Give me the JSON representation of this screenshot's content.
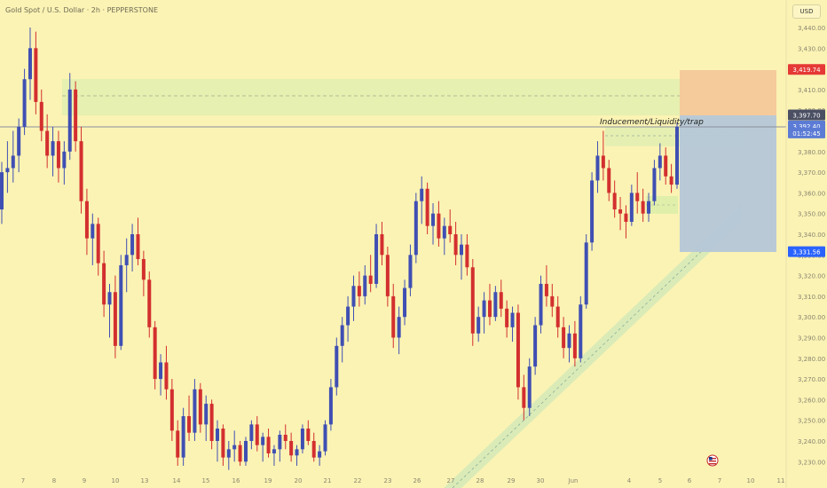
{
  "header": {
    "symbol_title": "Gold Spot / U.S. Dollar · 2h · PEPPERSTONE",
    "currency_button": "USD"
  },
  "chart_data": {
    "type": "candlestick",
    "instrument": "Gold Spot / U.S. Dollar",
    "timeframe": "2h",
    "broker": "PEPPERSTONE",
    "ylim": [
      3225,
      3445
    ],
    "y_ticks": [
      "3,440.00",
      "3,430.00",
      "3,420.00",
      "3,410.00",
      "3,400.00",
      "3,390.00",
      "3,380.00",
      "3,370.00",
      "3,360.00",
      "3,350.00",
      "3,340.00",
      "3,330.00",
      "3,320.00",
      "3,310.00",
      "3,300.00",
      "3,290.00",
      "3,280.00",
      "3,270.00",
      "3,260.00",
      "3,250.00",
      "3,240.00",
      "3,230.00"
    ],
    "x_ticks": [
      "7",
      "8",
      "9",
      "10",
      "13",
      "14",
      "15",
      "16",
      "19",
      "20",
      "21",
      "22",
      "23",
      "26",
      "27",
      "28",
      "29",
      "30",
      "Jun",
      "4",
      "5",
      "6",
      "7",
      "10",
      "11"
    ],
    "price_labels": [
      {
        "text": "3,419.74",
        "value": 3419.74,
        "color": "#e53935",
        "role": "target"
      },
      {
        "text": "3,397.70",
        "value": 3397.7,
        "color": "#4a4f63",
        "role": "line"
      },
      {
        "text": "3,392.40",
        "value": 3392.4,
        "color": "#5b7bd5",
        "role": "last price"
      },
      {
        "text": "01:52:45",
        "value": 3389.0,
        "color": "#5b7bd5",
        "role": "countdown"
      },
      {
        "text": "3,331.56",
        "value": 3331.56,
        "color": "#2962ff",
        "role": "stop"
      }
    ],
    "annotation": "Inducement/Liquidity/trap",
    "colors": {
      "up": "#3f4fb3",
      "down": "#d32f2f",
      "background": "#fbf3b4"
    },
    "grid": false,
    "candles": [
      [
        1,
        3352,
        3375,
        3345,
        3370
      ],
      [
        2,
        3370,
        3385,
        3360,
        3372
      ],
      [
        3,
        3372,
        3390,
        3365,
        3378
      ],
      [
        4,
        3378,
        3396,
        3370,
        3392
      ],
      [
        5,
        3392,
        3420,
        3388,
        3415
      ],
      [
        6,
        3415,
        3440,
        3405,
        3430
      ],
      [
        7,
        3430,
        3438,
        3398,
        3404
      ],
      [
        8,
        3404,
        3410,
        3385,
        3390
      ],
      [
        9,
        3390,
        3398,
        3372,
        3378
      ],
      [
        10,
        3378,
        3392,
        3368,
        3385
      ],
      [
        11,
        3385,
        3390,
        3365,
        3372
      ],
      [
        12,
        3372,
        3385,
        3364,
        3380
      ],
      [
        13,
        3380,
        3418,
        3376,
        3410
      ],
      [
        14,
        3410,
        3414,
        3380,
        3385
      ],
      [
        15,
        3385,
        3392,
        3350,
        3356
      ],
      [
        16,
        3356,
        3362,
        3330,
        3338
      ],
      [
        17,
        3338,
        3350,
        3325,
        3345
      ],
      [
        18,
        3345,
        3348,
        3320,
        3326
      ],
      [
        19,
        3326,
        3332,
        3300,
        3306
      ],
      [
        20,
        3306,
        3316,
        3290,
        3312
      ],
      [
        21,
        3312,
        3320,
        3280,
        3286
      ],
      [
        22,
        3286,
        3330,
        3284,
        3325
      ],
      [
        23,
        3325,
        3338,
        3312,
        3330
      ],
      [
        24,
        3330,
        3345,
        3322,
        3340
      ],
      [
        25,
        3340,
        3348,
        3325,
        3328
      ],
      [
        26,
        3328,
        3332,
        3310,
        3318
      ],
      [
        27,
        3318,
        3322,
        3290,
        3295
      ],
      [
        28,
        3295,
        3298,
        3265,
        3270
      ],
      [
        29,
        3270,
        3282,
        3262,
        3278
      ],
      [
        30,
        3278,
        3286,
        3260,
        3265
      ],
      [
        31,
        3265,
        3270,
        3240,
        3245
      ],
      [
        32,
        3245,
        3250,
        3228,
        3232
      ],
      [
        33,
        3232,
        3256,
        3228,
        3252
      ],
      [
        34,
        3252,
        3262,
        3240,
        3244
      ],
      [
        35,
        3244,
        3270,
        3240,
        3265
      ],
      [
        36,
        3265,
        3268,
        3244,
        3248
      ],
      [
        37,
        3248,
        3262,
        3240,
        3258
      ],
      [
        38,
        3258,
        3260,
        3236,
        3240
      ],
      [
        39,
        3240,
        3250,
        3230,
        3246
      ],
      [
        40,
        3246,
        3248,
        3228,
        3232
      ],
      [
        41,
        3232,
        3240,
        3226,
        3236
      ],
      [
        42,
        3236,
        3245,
        3230,
        3238
      ],
      [
        43,
        3238,
        3240,
        3228,
        3230
      ],
      [
        44,
        3230,
        3242,
        3228,
        3240
      ],
      [
        45,
        3240,
        3250,
        3236,
        3248
      ],
      [
        46,
        3248,
        3252,
        3235,
        3238
      ],
      [
        47,
        3238,
        3244,
        3230,
        3242
      ],
      [
        48,
        3242,
        3246,
        3232,
        3234
      ],
      [
        49,
        3234,
        3238,
        3228,
        3236
      ],
      [
        50,
        3236,
        3245,
        3230,
        3243
      ],
      [
        51,
        3243,
        3248,
        3236,
        3240
      ],
      [
        52,
        3240,
        3244,
        3230,
        3233
      ],
      [
        53,
        3233,
        3238,
        3228,
        3236
      ],
      [
        54,
        3236,
        3248,
        3234,
        3246
      ],
      [
        55,
        3246,
        3250,
        3238,
        3240
      ],
      [
        56,
        3240,
        3244,
        3230,
        3232
      ],
      [
        57,
        3232,
        3238,
        3228,
        3235
      ],
      [
        58,
        3235,
        3250,
        3233,
        3248
      ],
      [
        59,
        3248,
        3270,
        3245,
        3266
      ],
      [
        60,
        3266,
        3290,
        3262,
        3286
      ],
      [
        61,
        3286,
        3300,
        3278,
        3296
      ],
      [
        62,
        3296,
        3310,
        3288,
        3305
      ],
      [
        63,
        3305,
        3320,
        3298,
        3315
      ],
      [
        64,
        3315,
        3322,
        3305,
        3310
      ],
      [
        65,
        3310,
        3325,
        3306,
        3320
      ],
      [
        66,
        3320,
        3330,
        3312,
        3316
      ],
      [
        67,
        3316,
        3345,
        3314,
        3340
      ],
      [
        68,
        3340,
        3346,
        3325,
        3330
      ],
      [
        69,
        3330,
        3334,
        3305,
        3310
      ],
      [
        70,
        3310,
        3316,
        3285,
        3290
      ],
      [
        71,
        3290,
        3305,
        3282,
        3300
      ],
      [
        72,
        3300,
        3318,
        3296,
        3314
      ],
      [
        73,
        3314,
        3335,
        3310,
        3330
      ],
      [
        74,
        3330,
        3360,
        3326,
        3356
      ],
      [
        75,
        3356,
        3368,
        3345,
        3362
      ],
      [
        76,
        3362,
        3365,
        3340,
        3344
      ],
      [
        77,
        3344,
        3355,
        3335,
        3350
      ],
      [
        78,
        3350,
        3356,
        3334,
        3338
      ],
      [
        79,
        3338,
        3348,
        3330,
        3344
      ],
      [
        80,
        3344,
        3352,
        3336,
        3340
      ],
      [
        81,
        3340,
        3346,
        3325,
        3330
      ],
      [
        82,
        3330,
        3340,
        3318,
        3335
      ],
      [
        83,
        3335,
        3340,
        3320,
        3324
      ],
      [
        84,
        3324,
        3328,
        3286,
        3292
      ],
      [
        85,
        3292,
        3305,
        3288,
        3300
      ],
      [
        86,
        3300,
        3312,
        3292,
        3308
      ],
      [
        87,
        3308,
        3316,
        3296,
        3300
      ],
      [
        88,
        3300,
        3315,
        3298,
        3312
      ],
      [
        89,
        3312,
        3318,
        3300,
        3304
      ],
      [
        90,
        3304,
        3308,
        3290,
        3295
      ],
      [
        91,
        3295,
        3305,
        3288,
        3302
      ],
      [
        92,
        3302,
        3306,
        3260,
        3266
      ],
      [
        93,
        3266,
        3272,
        3250,
        3256
      ],
      [
        94,
        3256,
        3280,
        3252,
        3276
      ],
      [
        95,
        3276,
        3300,
        3272,
        3296
      ],
      [
        96,
        3296,
        3320,
        3292,
        3316
      ],
      [
        97,
        3316,
        3325,
        3305,
        3310
      ],
      [
        98,
        3310,
        3316,
        3300,
        3305
      ],
      [
        99,
        3305,
        3310,
        3290,
        3295
      ],
      [
        100,
        3295,
        3300,
        3280,
        3285
      ],
      [
        101,
        3285,
        3296,
        3278,
        3292
      ],
      [
        102,
        3292,
        3298,
        3276,
        3280
      ],
      [
        103,
        3280,
        3310,
        3278,
        3306
      ],
      [
        104,
        3306,
        3340,
        3304,
        3336
      ],
      [
        105,
        3336,
        3370,
        3332,
        3366
      ],
      [
        106,
        3366,
        3385,
        3360,
        3378
      ],
      [
        107,
        3378,
        3390,
        3366,
        3372
      ],
      [
        108,
        3372,
        3376,
        3356,
        3360
      ],
      [
        109,
        3360,
        3366,
        3348,
        3352
      ],
      [
        110,
        3352,
        3358,
        3342,
        3350
      ],
      [
        111,
        3350,
        3354,
        3338,
        3346
      ],
      [
        112,
        3346,
        3364,
        3344,
        3360
      ],
      [
        113,
        3360,
        3370,
        3350,
        3356
      ],
      [
        114,
        3356,
        3362,
        3346,
        3350
      ],
      [
        115,
        3350,
        3360,
        3346,
        3356
      ],
      [
        116,
        3356,
        3376,
        3354,
        3372
      ],
      [
        117,
        3372,
        3384,
        3366,
        3378
      ],
      [
        118,
        3378,
        3382,
        3364,
        3368
      ],
      [
        119,
        3368,
        3374,
        3360,
        3364
      ],
      [
        120,
        3364,
        3394,
        3362,
        3392
      ]
    ]
  }
}
